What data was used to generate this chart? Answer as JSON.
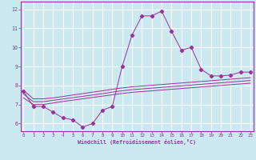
{
  "xlabel": "Windchill (Refroidissement éolien,°C)",
  "bg_color": "#cce8f0",
  "grid_color": "#ffffff",
  "line_color": "#993399",
  "x_ticks": [
    0,
    1,
    2,
    3,
    4,
    5,
    6,
    7,
    8,
    9,
    10,
    11,
    12,
    13,
    14,
    15,
    16,
    17,
    18,
    19,
    20,
    21,
    22,
    23
  ],
  "y_ticks": [
    6,
    7,
    8,
    9,
    10,
    11,
    12
  ],
  "xlim": [
    -0.3,
    23.3
  ],
  "ylim": [
    5.6,
    12.4
  ],
  "main_x": [
    0,
    1,
    2,
    3,
    4,
    5,
    6,
    7,
    8,
    9,
    10,
    11,
    12,
    13,
    14,
    15,
    16,
    17,
    18,
    19,
    20,
    21,
    22,
    23
  ],
  "main_y": [
    7.7,
    6.9,
    6.9,
    6.6,
    6.3,
    6.2,
    5.82,
    6.0,
    6.7,
    6.9,
    9.0,
    10.65,
    11.65,
    11.65,
    11.9,
    10.85,
    9.85,
    10.0,
    8.85,
    8.5,
    8.5,
    8.55,
    8.7,
    8.7
  ],
  "band_line1": [
    7.75,
    7.3,
    7.3,
    7.35,
    7.42,
    7.5,
    7.57,
    7.65,
    7.72,
    7.8,
    7.87,
    7.93,
    7.97,
    8.01,
    8.05,
    8.09,
    8.13,
    8.17,
    8.21,
    8.25,
    8.29,
    8.33,
    8.37,
    8.41
  ],
  "band_line2": [
    7.55,
    7.15,
    7.15,
    7.22,
    7.29,
    7.36,
    7.43,
    7.5,
    7.57,
    7.65,
    7.72,
    7.78,
    7.82,
    7.86,
    7.9,
    7.94,
    7.98,
    8.02,
    8.06,
    8.1,
    8.14,
    8.18,
    8.22,
    8.26
  ],
  "band_line3": [
    7.35,
    7.0,
    7.0,
    7.08,
    7.16,
    7.23,
    7.3,
    7.37,
    7.44,
    7.51,
    7.58,
    7.64,
    7.68,
    7.72,
    7.76,
    7.8,
    7.84,
    7.88,
    7.92,
    7.96,
    8.0,
    8.04,
    8.08,
    8.12
  ],
  "figsize": [
    3.2,
    2.0
  ],
  "dpi": 100
}
